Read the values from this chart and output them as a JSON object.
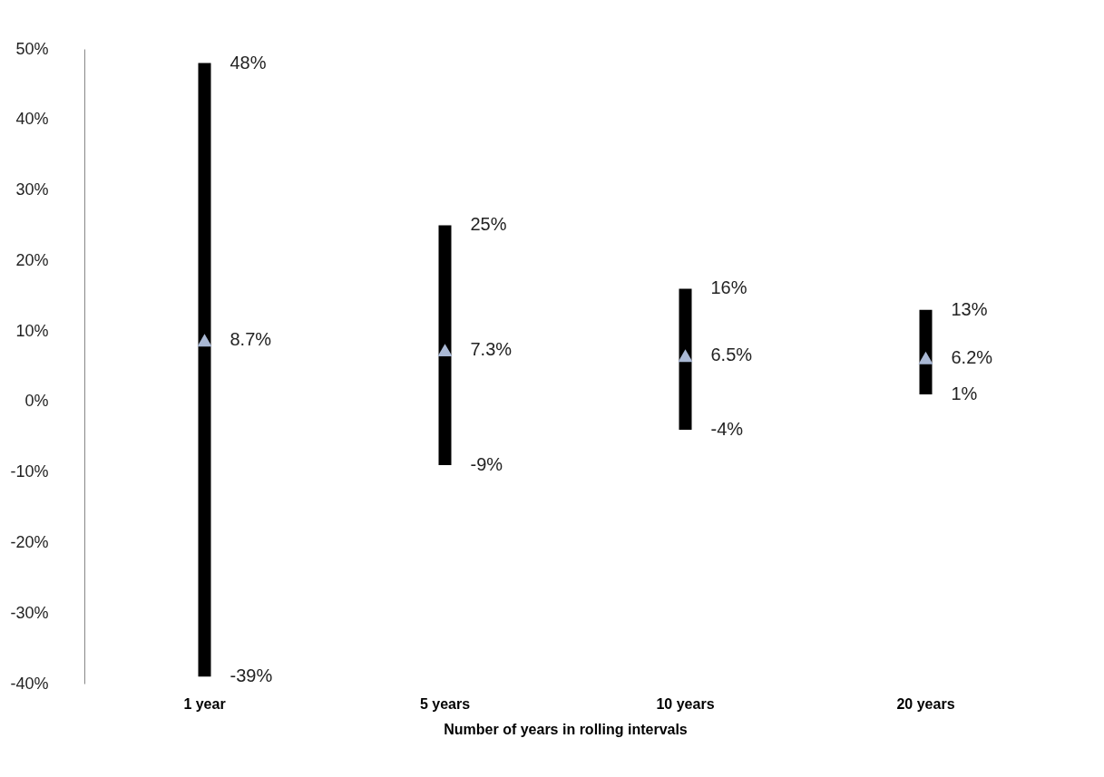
{
  "chart_data": {
    "type": "bar",
    "xlabel": "Number of years in rolling intervals",
    "categories": [
      "1 year",
      "5 years",
      "10  years",
      "20 years"
    ],
    "series": [
      {
        "color": "#000000",
        "base": [
          -39,
          -9,
          -4,
          1
        ],
        "values": [
          87,
          34,
          20,
          12
        ]
      },
      {
        "type": "scatter",
        "color": "#a9b8d4",
        "marker": "triangle",
        "x": [
          "1 year",
          "5 years",
          "10  years",
          "20 years"
        ],
        "values": [
          8.7,
          7.3,
          6.5,
          6.2
        ],
        "value_labels": [
          "8.7%",
          "7.3%",
          "6.5%",
          "6.2%"
        ]
      }
    ],
    "annotations": [
      {
        "text": "48%",
        "x": "1 year",
        "y": 48
      },
      {
        "text": "-39%",
        "x": "1 year",
        "y": -39
      },
      {
        "text": "25%",
        "x": "5 years",
        "y": 25
      },
      {
        "text": "-9%",
        "x": "5 years",
        "y": -9
      },
      {
        "text": "16%",
        "x": "10  years",
        "y": 16
      },
      {
        "text": "-4%",
        "x": "10  years",
        "y": -4
      },
      {
        "text": "13%",
        "x": "20 years",
        "y": 13
      },
      {
        "text": "1%",
        "x": "20 years",
        "y": 1
      }
    ],
    "ylim": [
      -40,
      50
    ],
    "yticks": [
      {
        "value": -40,
        "label": "-40%"
      },
      {
        "value": -30,
        "label": "-30%"
      },
      {
        "value": -20,
        "label": "-20%"
      },
      {
        "value": -10,
        "label": "-10%"
      },
      {
        "value": 0,
        "label": "0%"
      },
      {
        "value": 10,
        "label": "10%"
      },
      {
        "value": 20,
        "label": "20%"
      },
      {
        "value": 30,
        "label": "30%"
      },
      {
        "value": 40,
        "label": "40%"
      },
      {
        "value": 50,
        "label": "50%"
      }
    ],
    "grid": false
  }
}
